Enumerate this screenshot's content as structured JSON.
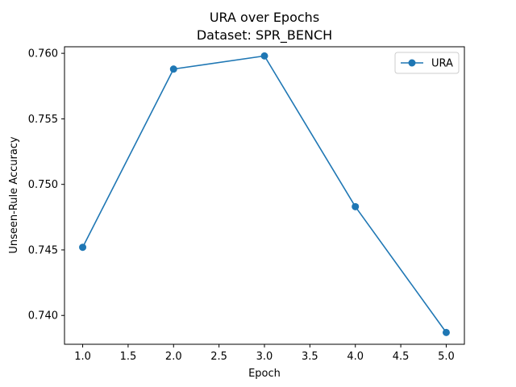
{
  "chart_data": {
    "type": "line",
    "title": "URA over Epochs",
    "subtitle": "Dataset: SPR_BENCH",
    "xlabel": "Epoch",
    "ylabel": "Unseen-Rule Accuracy",
    "xlim": [
      0.8,
      5.2
    ],
    "ylim": [
      0.7378,
      0.7605
    ],
    "xticks": [
      "1.0",
      "1.5",
      "2.0",
      "2.5",
      "3.0",
      "3.5",
      "4.0",
      "4.5",
      "5.0"
    ],
    "yticks": [
      "0.740",
      "0.745",
      "0.750",
      "0.755",
      "0.760"
    ],
    "grid": false,
    "legend_position": "top-right",
    "series": [
      {
        "name": "URA",
        "color": "#1f77b4",
        "marker": "circle",
        "x": [
          1,
          2,
          3,
          4,
          5
        ],
        "y": [
          0.7452,
          0.7588,
          0.7598,
          0.7483,
          0.7387
        ]
      }
    ]
  }
}
